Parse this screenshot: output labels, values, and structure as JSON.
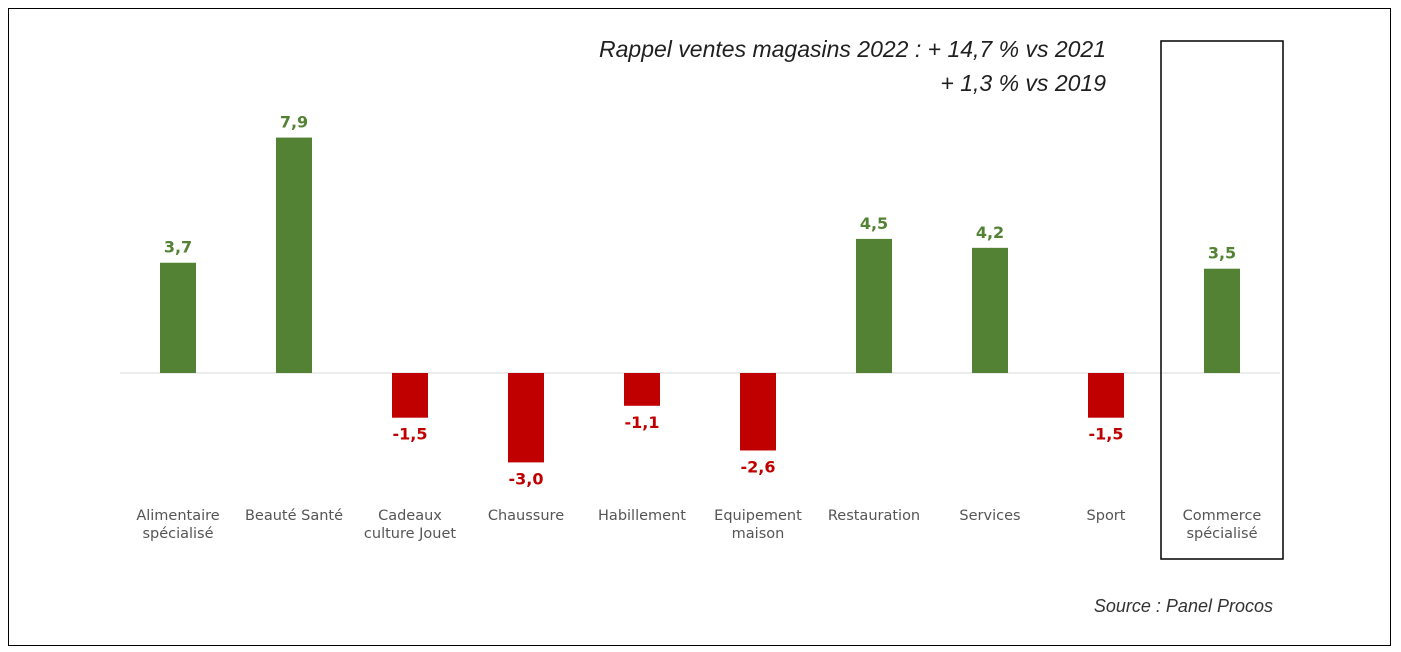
{
  "annotation": {
    "line1": "Rappel ventes magasins 2022 : + 14,7 % vs 2021",
    "line2": "+ 1,3 % vs 2019"
  },
  "source": "Source : Panel Procos",
  "colors": {
    "positive": "#548235",
    "negative": "#C00000",
    "axis": "#d9d9d9"
  },
  "chart_data": {
    "type": "bar",
    "title": "",
    "xlabel": "",
    "ylabel": "",
    "ylim": [
      -3.5,
      9
    ],
    "highlighted_category": "Commerce spécialisé",
    "categories": [
      [
        "Alimentaire",
        "spécialisé"
      ],
      [
        "Beauté Santé"
      ],
      [
        "Cadeaux",
        "culture Jouet"
      ],
      [
        "Chaussure"
      ],
      [
        "Habillement"
      ],
      [
        "Equipement",
        "maison"
      ],
      [
        "Restauration"
      ],
      [
        "Services"
      ],
      [
        "Sport"
      ],
      [
        "Commerce",
        "spécialisé"
      ]
    ],
    "values": [
      3.7,
      7.9,
      -1.5,
      -3.0,
      -1.1,
      -2.6,
      4.5,
      4.2,
      -1.5,
      3.5
    ],
    "data_labels": [
      "3,7",
      "7,9",
      "-1,5",
      "-3,0",
      "-1,1",
      "-2,6",
      "4,5",
      "4,2",
      "-1,5",
      "3,5"
    ]
  }
}
